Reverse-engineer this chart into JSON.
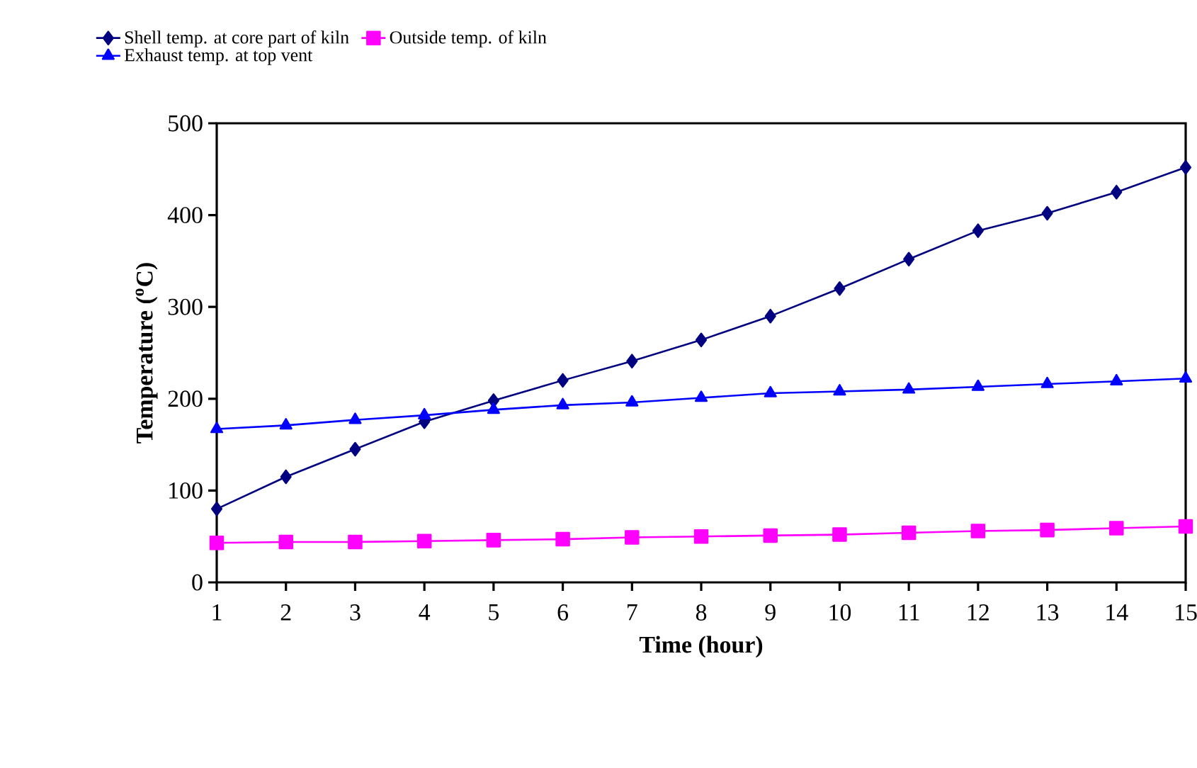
{
  "chart_data": {
    "type": "line",
    "xlabel": "Time (hour)",
    "ylabel": "Temperature ($^{o}$C)",
    "x": [
      1,
      2,
      3,
      4,
      5,
      6,
      7,
      8,
      9,
      10,
      11,
      12,
      13,
      14,
      15
    ],
    "series": [
      {
        "name": "Shell temp. at core part of kiln",
        "color": "#000080",
        "marker": "diamond",
        "values": [
          80,
          115,
          145,
          175,
          198,
          220,
          241,
          264,
          290,
          320,
          352,
          383,
          402,
          425,
          452
        ]
      },
      {
        "name": "Outside temp. of kiln",
        "color": "#ff00ff",
        "marker": "square",
        "values": [
          43,
          44,
          44,
          45,
          46,
          47,
          49,
          50,
          51,
          52,
          54,
          56,
          57,
          59,
          61
        ]
      },
      {
        "name": "Exhaust temp. at top vent",
        "color": "#0000ff",
        "marker": "triangle",
        "values": [
          167,
          171,
          177,
          182,
          188,
          193,
          196,
          201,
          206,
          208,
          210,
          213,
          216,
          219,
          222
        ]
      }
    ],
    "xlim": [
      1,
      15
    ],
    "xticks": [
      1,
      2,
      3,
      4,
      5,
      6,
      7,
      8,
      9,
      10,
      11,
      12,
      13,
      14,
      15
    ],
    "ylim": [
      0,
      500
    ],
    "yticks": [
      0,
      100,
      200,
      300,
      400,
      500
    ],
    "grid": false,
    "legend": "top",
    "line_style": "solid"
  }
}
